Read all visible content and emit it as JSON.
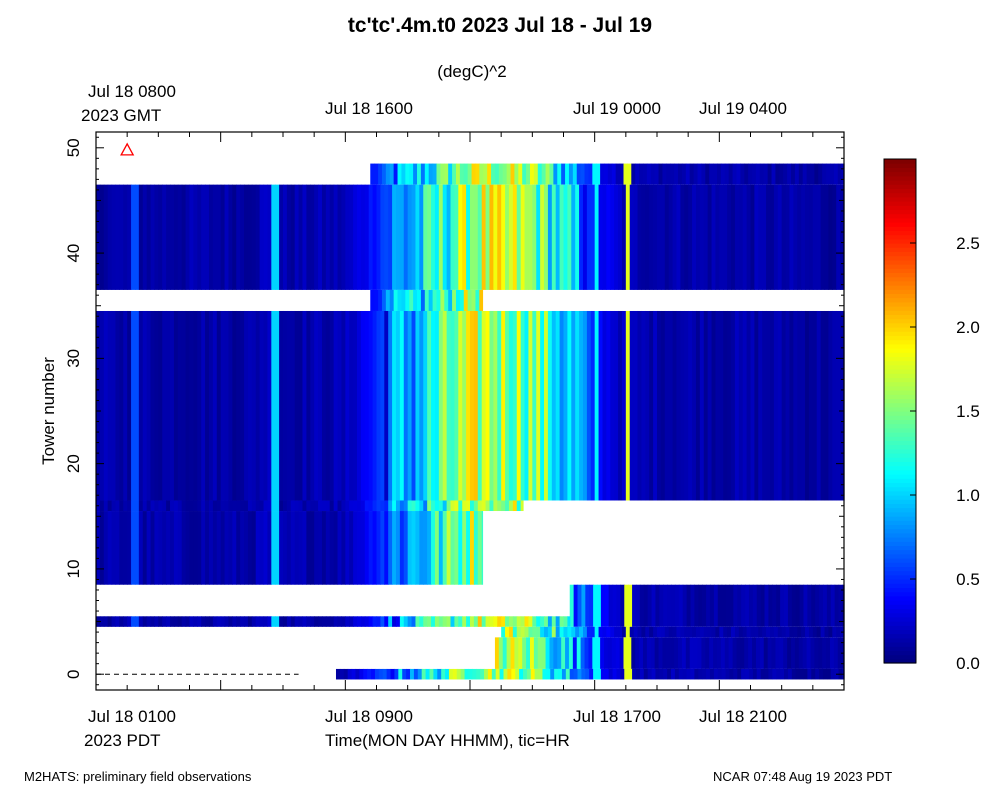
{
  "title": "tc'tc'.4m.t0 2023 Jul 18 - Jul 19",
  "units_label": "(degC)^2",
  "top_axis": {
    "first_label": "Jul 18 0800",
    "timezone_label": "2023 GMT",
    "tick_labels": [
      "Jul 18 1600",
      "Jul 19 0000",
      "Jul 19 0400"
    ]
  },
  "bottom_axis": {
    "tick_labels": [
      "Jul 18 0100",
      "Jul 18 0900",
      "Jul 18 1700",
      "Jul 18 2100"
    ],
    "timezone_label": "2023 PDT",
    "xlabel": "Time(MON DAY HHMM), tic=HR"
  },
  "footer": {
    "left": "M2HATS: preliminary field observations",
    "right": "NCAR 07:48 Aug 19 2023 PDT"
  },
  "colors": {
    "colormap": "jet",
    "marker": "#ff0000",
    "missing": "#ffffff"
  },
  "chart_data": {
    "type": "heatmap",
    "title": "tc'tc'.4m.t0 2023 Jul 18 - Jul 19",
    "xlabel": "Time(MON DAY HHMM), tic=HR",
    "ylabel": "Tower number",
    "x_units": "hours PDT, Jul 18",
    "x_range": [
      0,
      24
    ],
    "y_range": [
      -1.5,
      51.5
    ],
    "y_ticks": [
      0,
      10,
      20,
      30,
      40,
      50
    ],
    "colorbar": {
      "label": "(degC)^2",
      "range": [
        0,
        3.0
      ],
      "ticks": [
        0.0,
        0.5,
        1.0,
        1.5,
        2.0,
        2.5
      ],
      "tick_labels": [
        "0.0",
        "0.5",
        "1.0",
        "1.5",
        "2.0",
        "2.5"
      ]
    },
    "marker": {
      "shape": "triangle",
      "x": 1.0,
      "y": 49.8
    },
    "dashed_line": {
      "y": 0,
      "x_range": [
        0,
        6.5
      ]
    },
    "tower_rows": [
      {
        "towers": [
          47,
          48
        ],
        "start": 8.8,
        "end": 24
      },
      {
        "towers": [
          37,
          46
        ],
        "start": 0,
        "end": 24
      },
      {
        "towers": [
          35,
          36
        ],
        "start": 8.8,
        "end": 12.4
      },
      {
        "towers": [
          17,
          34
        ],
        "start": 0,
        "end": 24
      },
      {
        "towers": [
          16,
          16
        ],
        "start": 0,
        "end": 13.7
      },
      {
        "towers": [
          9,
          15
        ],
        "start": 0,
        "end": 12.4
      },
      {
        "towers": [
          5,
          8
        ],
        "start": 15.2,
        "end": 24
      },
      {
        "towers": [
          5,
          5
        ],
        "start": 0,
        "end": 15.2
      },
      {
        "towers": [
          4,
          4
        ],
        "start": 13.0,
        "end": 24
      },
      {
        "towers": [
          1,
          3
        ],
        "start": 12.8,
        "end": 24
      },
      {
        "towers": [
          0,
          0
        ],
        "start": 7.7,
        "end": 24
      }
    ],
    "time_profile": {
      "hours": [
        0,
        5,
        5.5,
        5.7,
        8.0,
        8.8,
        9.5,
        10.5,
        11.5,
        12.0,
        12.5,
        13.0,
        13.5,
        14.0,
        14.5,
        15.0,
        15.5,
        16.0,
        16.5,
        17.0,
        24
      ],
      "value": [
        0.12,
        0.12,
        0.2,
        0.12,
        0.15,
        0.4,
        0.7,
        1.0,
        1.4,
        1.6,
        1.7,
        1.6,
        1.6,
        1.5,
        1.3,
        1.0,
        0.8,
        0.4,
        0.3,
        0.15,
        0.1
      ]
    },
    "spikes": [
      {
        "hour": 5.65,
        "value": 1.0
      },
      {
        "hour": 1.2,
        "value": 0.6
      },
      {
        "hour": 16.0,
        "value": 1.1
      },
      {
        "hour": 17.0,
        "value": 1.8
      }
    ]
  }
}
